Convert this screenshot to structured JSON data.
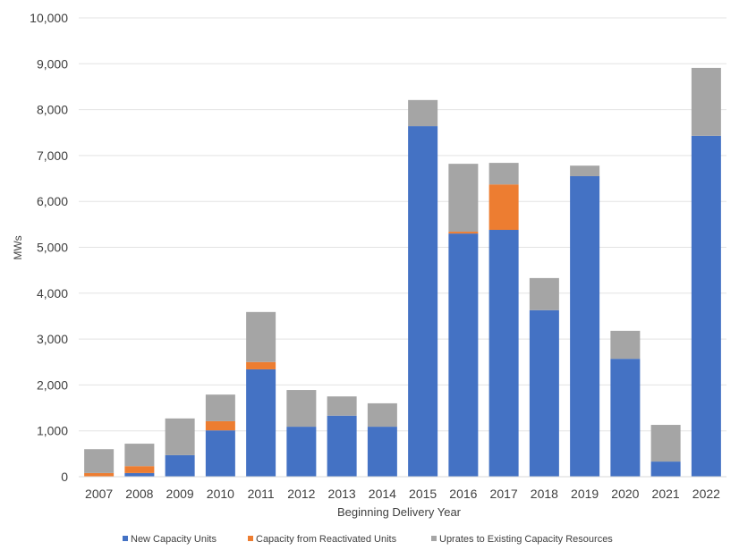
{
  "chart_data": {
    "type": "bar",
    "stacked": true,
    "title": "",
    "xlabel": "Beginning Delivery Year",
    "ylabel": "MWs",
    "ylim": [
      0,
      10000
    ],
    "yticks": [
      0,
      1000,
      2000,
      3000,
      4000,
      5000,
      6000,
      7000,
      8000,
      9000,
      10000
    ],
    "ytick_labels": [
      "0",
      "1,000",
      "2,000",
      "3,000",
      "4,000",
      "5,000",
      "6,000",
      "7,000",
      "8,000",
      "9,000",
      "10,000"
    ],
    "grid": true,
    "legend_position": "bottom",
    "categories": [
      "2007",
      "2008",
      "2009",
      "2010",
      "2011",
      "2012",
      "2013",
      "2014",
      "2015",
      "2016",
      "2017",
      "2018",
      "2019",
      "2020",
      "2021",
      "2022"
    ],
    "series": [
      {
        "name": "New Capacity Units",
        "color": "#4472C4",
        "values": [
          0,
          80,
          470,
          1010,
          2340,
          1090,
          1330,
          1090,
          7640,
          5300,
          5380,
          3630,
          6550,
          2570,
          330,
          7430
        ]
      },
      {
        "name": "Capacity from Reactivated Units",
        "color": "#ED7D31",
        "values": [
          80,
          150,
          0,
          200,
          160,
          0,
          0,
          0,
          0,
          40,
          990,
          0,
          0,
          0,
          0,
          0
        ]
      },
      {
        "name": "Uprates to Existing Capacity Resources",
        "color": "#A5A5A5",
        "values": [
          520,
          490,
          800,
          580,
          1090,
          800,
          420,
          510,
          570,
          1480,
          470,
          700,
          230,
          610,
          800,
          1480
        ]
      }
    ]
  }
}
